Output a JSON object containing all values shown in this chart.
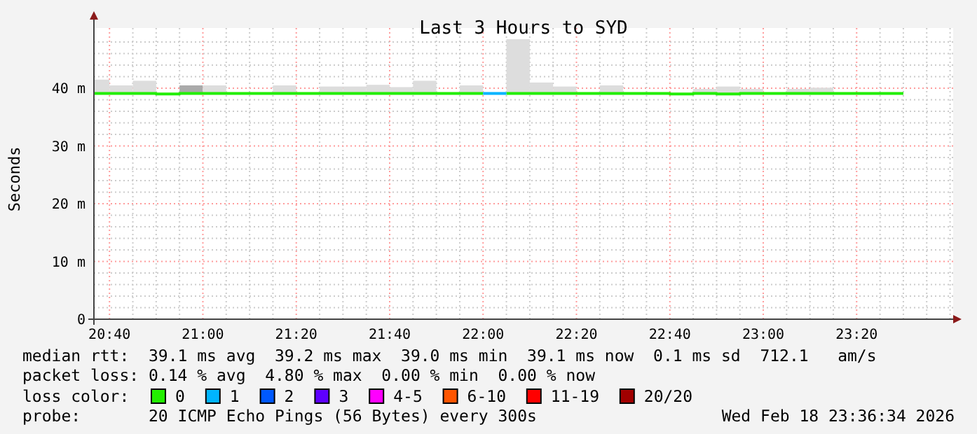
{
  "chart_data": {
    "type": "step",
    "title": "Last 3 Hours to SYD",
    "ylabel": "Seconds",
    "legend_title": "loss color:",
    "legend": "bottom",
    "grid": true,
    "xlim": [
      20.6111,
      23.6778
    ],
    "ylim": [
      0,
      48.5
    ],
    "xticks": [
      {
        "value": 20.6667,
        "label": "20:40"
      },
      {
        "value": 20.75,
        "label": null
      },
      {
        "value": 20.8333,
        "label": null
      },
      {
        "value": 20.9167,
        "label": null
      },
      {
        "value": 21,
        "label": "21:00"
      },
      {
        "value": 21.0833,
        "label": null
      },
      {
        "value": 21.1667,
        "label": null
      },
      {
        "value": 21.25,
        "label": null
      },
      {
        "value": 21.3333,
        "label": "21:20"
      },
      {
        "value": 21.4167,
        "label": null
      },
      {
        "value": 21.5,
        "label": null
      },
      {
        "value": 21.5833,
        "label": null
      },
      {
        "value": 21.6667,
        "label": "21:40"
      },
      {
        "value": 21.75,
        "label": null
      },
      {
        "value": 21.8333,
        "label": null
      },
      {
        "value": 21.9167,
        "label": null
      },
      {
        "value": 22,
        "label": "22:00"
      },
      {
        "value": 22.0833,
        "label": null
      },
      {
        "value": 22.1667,
        "label": null
      },
      {
        "value": 22.25,
        "label": null
      },
      {
        "value": 22.3333,
        "label": "22:20"
      },
      {
        "value": 22.4167,
        "label": null
      },
      {
        "value": 22.5,
        "label": null
      },
      {
        "value": 22.5833,
        "label": null
      },
      {
        "value": 22.6667,
        "label": "22:40"
      },
      {
        "value": 22.75,
        "label": null
      },
      {
        "value": 22.8333,
        "label": null
      },
      {
        "value": 22.9167,
        "label": null
      },
      {
        "value": 23,
        "label": "23:00"
      },
      {
        "value": 23.0833,
        "label": null
      },
      {
        "value": 23.1667,
        "label": null
      },
      {
        "value": 23.25,
        "label": null
      },
      {
        "value": 23.3333,
        "label": "23:20"
      },
      {
        "value": 23.4167,
        "label": null
      },
      {
        "value": 23.5,
        "label": null
      },
      {
        "value": 23.5833,
        "label": null
      },
      {
        "value": 23.6667,
        "label": null
      }
    ],
    "yticks": [
      {
        "value": 0,
        "label": "0"
      },
      {
        "value": 2,
        "label": null
      },
      {
        "value": 4,
        "label": null
      },
      {
        "value": 6,
        "label": null
      },
      {
        "value": 8,
        "label": null
      },
      {
        "value": 10,
        "label": "10 m"
      },
      {
        "value": 12,
        "label": null
      },
      {
        "value": 14,
        "label": null
      },
      {
        "value": 16,
        "label": null
      },
      {
        "value": 18,
        "label": null
      },
      {
        "value": 20,
        "label": "20 m"
      },
      {
        "value": 22,
        "label": null
      },
      {
        "value": 24,
        "label": null
      },
      {
        "value": 26,
        "label": null
      },
      {
        "value": 28,
        "label": null
      },
      {
        "value": 30,
        "label": "30 m"
      },
      {
        "value": 32,
        "label": null
      },
      {
        "value": 34,
        "label": null
      },
      {
        "value": 36,
        "label": null
      },
      {
        "value": 38,
        "label": null
      },
      {
        "value": 40,
        "label": "40 m"
      },
      {
        "value": 42,
        "label": null
      },
      {
        "value": 44,
        "label": null
      },
      {
        "value": 46,
        "label": null
      },
      {
        "value": 48,
        "label": null
      }
    ],
    "x": [
      20.6111,
      20.6667,
      20.75,
      20.8333,
      20.9167,
      21,
      21.0833,
      21.1667,
      21.25,
      21.3333,
      21.4167,
      21.5,
      21.5833,
      21.6667,
      21.75,
      21.8333,
      21.9167,
      22,
      22.0833,
      22.1667,
      22.25,
      22.3333,
      22.4167,
      22.5,
      22.5833,
      22.6667,
      22.75,
      22.8333,
      22.9167,
      23,
      23.0833,
      23.1667,
      23.25,
      23.3333,
      23.4167,
      23.5
    ],
    "series": [
      {
        "type": "bar",
        "x": [
          20.625,
          20.7083,
          20.7917,
          20.875,
          20.9583,
          21.0417,
          21.125,
          21.2083,
          21.2917,
          21.375,
          21.4583,
          21.5417,
          21.625,
          21.7083,
          21.7917,
          21.875,
          21.9583,
          22.0417,
          22.125,
          22.2083,
          22.2917,
          22.375,
          22.4583,
          22.5417,
          22.625,
          22.7083,
          22.7917,
          22.875,
          22.9583,
          23.0417,
          23.125,
          23.2083
        ],
        "base": [
          39,
          39,
          39,
          null,
          39,
          39,
          null,
          null,
          39,
          null,
          39,
          39,
          39,
          39,
          39,
          null,
          39,
          null,
          39,
          39,
          39,
          null,
          39,
          null,
          null,
          null,
          39,
          39,
          39,
          null,
          39,
          39
        ],
        "values": [
          2.5,
          1.5,
          2.3,
          null,
          1.5,
          1.5,
          null,
          null,
          1.5,
          null,
          1.3,
          1.3,
          1.6,
          1.2,
          2.3,
          null,
          1.5,
          null,
          9.5,
          2,
          1.3,
          null,
          1.5,
          null,
          null,
          null,
          0.9,
          1.3,
          0.9,
          null,
          0.9,
          1.1
        ],
        "colors": [
          "#dddddd",
          "#dddddd",
          "#dddddd",
          "#dddddd",
          "#aaaaaa",
          "#dddddd",
          "#dddddd",
          "#dddddd",
          "#dddddd",
          "#dddddd",
          "#dddddd",
          "#dddddd",
          "#dddddd",
          "#dddddd",
          "#dddddd",
          "#dddddd",
          "#dddddd",
          "#dddddd",
          "#dddddd",
          "#dddddd",
          "#dddddd",
          "#dddddd",
          "#dddddd",
          "#dddddd",
          "#dddddd",
          "#dddddd",
          "#dddddd",
          "#dddddd",
          "#dddddd",
          "#dddddd",
          "#dddddd",
          "#dddddd"
        ]
      },
      {
        "name": "0",
        "color": "#22ee00",
        "values": [
          39.1,
          39.1,
          39.1,
          39.0,
          39.1,
          39.1,
          39.1,
          39.1,
          39.1,
          39.1,
          39.1,
          39.1,
          39.1,
          39.1,
          39.1,
          39.1,
          39.1,
          null,
          39.1,
          39.1,
          39.1,
          39.1,
          39.1,
          39.1,
          39.1,
          39.0,
          39.1,
          39.0,
          39.1,
          39.1,
          39.1,
          39.1,
          39.1,
          39.1,
          39.1,
          39.1
        ]
      },
      {
        "name": "1",
        "color": "#00b4ff",
        "x": [
          22,
          22.0833
        ],
        "values": [
          39.1,
          39.1
        ]
      },
      {
        "name": "2",
        "color": "#0059ff",
        "values": [
          null,
          null,
          null,
          null,
          null,
          null,
          null,
          null,
          null,
          null,
          null,
          null,
          null,
          null,
          null,
          null,
          null,
          null,
          null,
          null,
          null,
          null,
          null,
          null,
          null,
          null,
          null,
          null,
          null,
          null,
          null,
          null,
          null,
          null,
          null,
          null
        ]
      },
      {
        "name": "3",
        "color": "#5e00ff",
        "values": [
          null,
          null,
          null,
          null,
          null,
          null,
          null,
          null,
          null,
          null,
          null,
          null,
          null,
          null,
          null,
          null,
          null,
          null,
          null,
          null,
          null,
          null,
          null,
          null,
          null,
          null,
          null,
          null,
          null,
          null,
          null,
          null,
          null,
          null,
          null,
          null
        ]
      },
      {
        "name": "4-5",
        "color": "#ff00ff",
        "values": [
          null,
          null,
          null,
          null,
          null,
          null,
          null,
          null,
          null,
          null,
          null,
          null,
          null,
          null,
          null,
          null,
          null,
          null,
          null,
          null,
          null,
          null,
          null,
          null,
          null,
          null,
          null,
          null,
          null,
          null,
          null,
          null,
          null,
          null,
          null,
          null
        ]
      },
      {
        "name": "6-10",
        "color": "#ff5500",
        "values": [
          null,
          null,
          null,
          null,
          null,
          null,
          null,
          null,
          null,
          null,
          null,
          null,
          null,
          null,
          null,
          null,
          null,
          null,
          null,
          null,
          null,
          null,
          null,
          null,
          null,
          null,
          null,
          null,
          null,
          null,
          null,
          null,
          null,
          null,
          null,
          null
        ]
      },
      {
        "name": "11-19",
        "color": "#ff0000",
        "values": [
          null,
          null,
          null,
          null,
          null,
          null,
          null,
          null,
          null,
          null,
          null,
          null,
          null,
          null,
          null,
          null,
          null,
          null,
          null,
          null,
          null,
          null,
          null,
          null,
          null,
          null,
          null,
          null,
          null,
          null,
          null,
          null,
          null,
          null,
          null,
          null
        ]
      },
      {
        "name": "20/20",
        "color": "#a10000",
        "values": [
          null,
          null,
          null,
          null,
          null,
          null,
          null,
          null,
          null,
          null,
          null,
          null,
          null,
          null,
          null,
          null,
          null,
          null,
          null,
          null,
          null,
          null,
          null,
          null,
          null,
          null,
          null,
          null,
          null,
          null,
          null,
          null,
          null,
          null,
          null,
          null
        ]
      }
    ],
    "annotations": [
      "median rtt:  39.1 ms avg  39.2 ms max  39.0 ms min  39.1 ms now  0.1 ms sd  712.1   am/s",
      "packet loss: 0.14 % avg  4.80 % max  0.00 % min  0.00 % now",
      "probe:       20 ICMP Echo Pings (56 Bytes) every 300s",
      "Wed Feb 18 23:36:34 2026"
    ]
  }
}
